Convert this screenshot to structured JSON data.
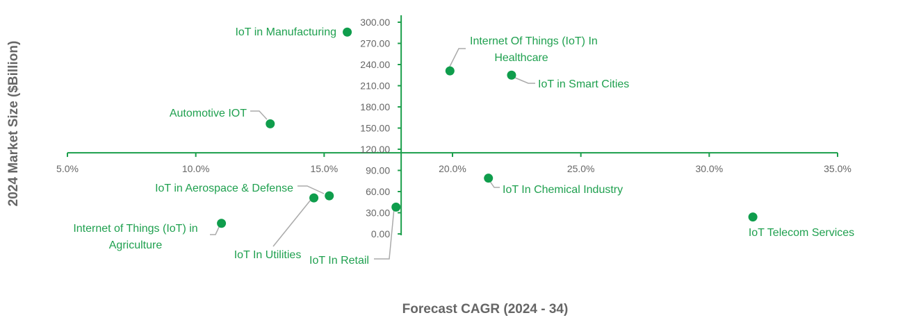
{
  "chart_data": {
    "type": "scatter",
    "title": "",
    "xlabel": "Forecast CAGR (2024 - 34)",
    "ylabel": "2024 Market Size ($Billion)",
    "xlim": [
      5,
      35
    ],
    "ylim": [
      0,
      300
    ],
    "x_ticks": [
      "5.0%",
      "10.0%",
      "15.0%",
      "20.0%",
      "25.0%",
      "30.0%",
      "35.0%"
    ],
    "y_ticks": [
      "0.00",
      "30.00",
      "60.00",
      "90.00",
      "120.00",
      "150.00",
      "180.00",
      "210.00",
      "240.00",
      "270.00",
      "300.00"
    ],
    "x_axis_crosses_y_at": 115,
    "y_axis_crosses_x_at": 18,
    "grid": false,
    "legend": "none",
    "colors": {
      "points": "#0f9d4c",
      "labels": "#1fa04f",
      "axes": "#1a9e4a"
    },
    "points": [
      {
        "label": "IoT in Manufacturing",
        "x": 15.9,
        "y": 286
      },
      {
        "label": "Internet Of Things (IoT) In Healthcare",
        "x": 19.9,
        "y": 231
      },
      {
        "label": "IoT in Smart Cities",
        "x": 22.3,
        "y": 225
      },
      {
        "label": "Automotive IOT",
        "x": 12.9,
        "y": 156
      },
      {
        "label": "IoT In Chemical Industry",
        "x": 21.4,
        "y": 79
      },
      {
        "label": "IoT in Aerospace & Defense",
        "x": 15.2,
        "y": 54
      },
      {
        "label": "IoT In Utilities",
        "x": 14.6,
        "y": 51
      },
      {
        "label": "IoT In Retail",
        "x": 17.8,
        "y": 38
      },
      {
        "label": "Internet of Things (IoT) in Agriculture",
        "x": 11.0,
        "y": 15
      },
      {
        "label": "IoT Telecom Services",
        "x": 31.7,
        "y": 24
      }
    ]
  }
}
